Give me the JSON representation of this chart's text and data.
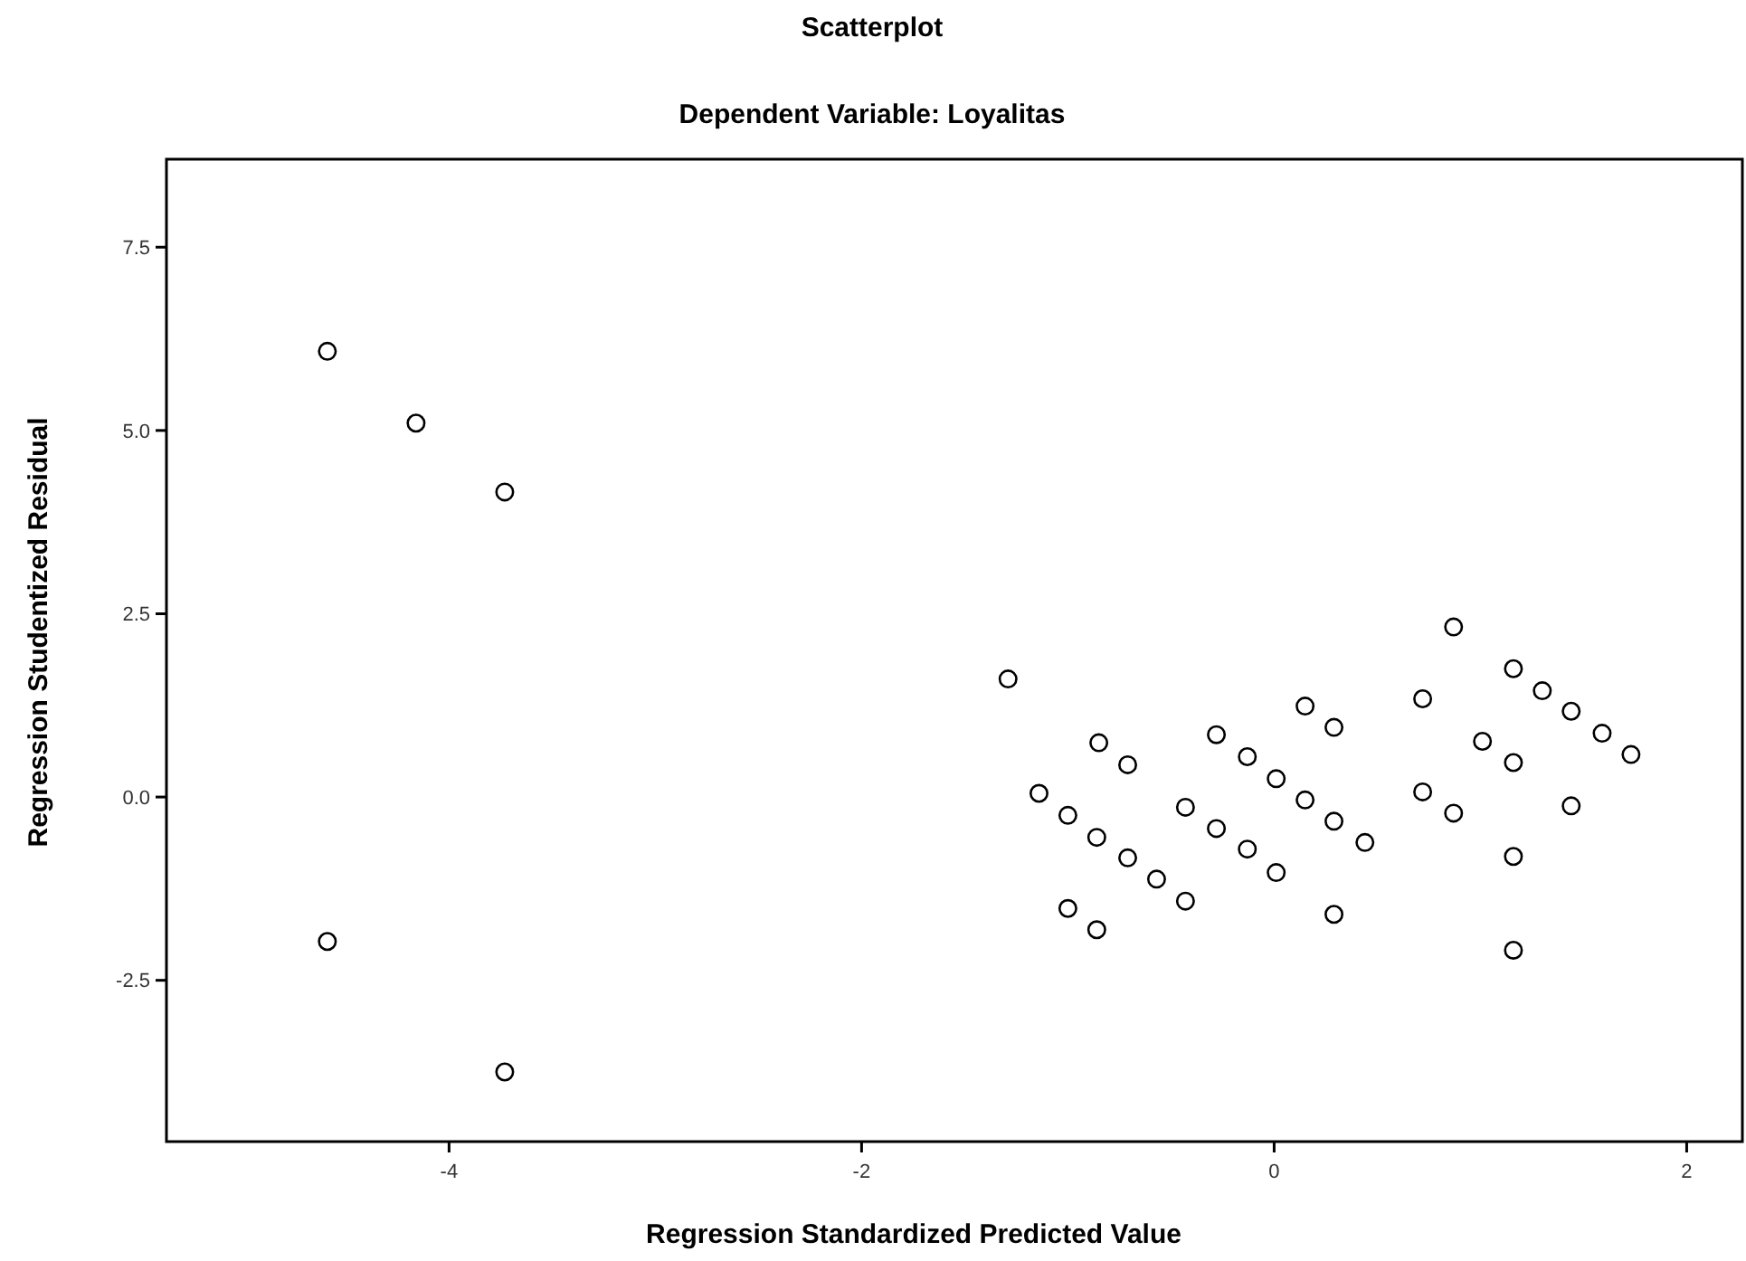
{
  "chart_data": {
    "type": "scatter",
    "title": "Scatterplot",
    "subtitle": "Dependent Variable: Loyalitas",
    "xlabel": "Regression Standardized Predicted Value",
    "ylabel": "Regression Studentized Residual",
    "x": [
      -4.59,
      -4.16,
      -3.73,
      -4.59,
      -3.73,
      -1.29,
      -0.85,
      -0.71,
      -1.14,
      -1.0,
      -0.86,
      -0.71,
      -0.57,
      -0.43,
      -1.0,
      -0.86,
      -0.28,
      -0.13,
      0.01,
      0.15,
      0.29,
      0.44,
      -0.43,
      -0.28,
      -0.13,
      0.01,
      0.15,
      0.29,
      0.29,
      0.87,
      0.72,
      1.16,
      1.3,
      1.44,
      1.59,
      1.73,
      1.01,
      1.16,
      0.72,
      0.87,
      1.44,
      1.16,
      1.16
    ],
    "values": [
      6.08,
      5.1,
      4.16,
      -1.97,
      -3.75,
      1.61,
      0.74,
      0.44,
      0.05,
      -0.25,
      -0.55,
      -0.83,
      -1.12,
      -1.42,
      -1.52,
      -1.81,
      0.85,
      0.55,
      0.25,
      -0.04,
      -0.33,
      -0.62,
      -0.14,
      -0.43,
      -0.71,
      -1.03,
      1.24,
      0.95,
      -1.6,
      2.32,
      1.34,
      1.75,
      1.45,
      1.17,
      0.87,
      0.58,
      0.76,
      0.47,
      0.07,
      -0.22,
      -0.12,
      -0.81,
      -2.09
    ],
    "color": "#000000",
    "marker": "circle",
    "xlim": [
      -5.37,
      2.27
    ],
    "ylim": [
      -4.7,
      8.7
    ],
    "xticks": [
      -4,
      -2,
      0,
      2
    ],
    "yticks": [
      -2.5,
      {
        "value": 0,
        "label": "0.0"
      },
      2.5,
      {
        "value": 5,
        "label": "5.0"
      },
      7.5
    ],
    "grid": false
  }
}
